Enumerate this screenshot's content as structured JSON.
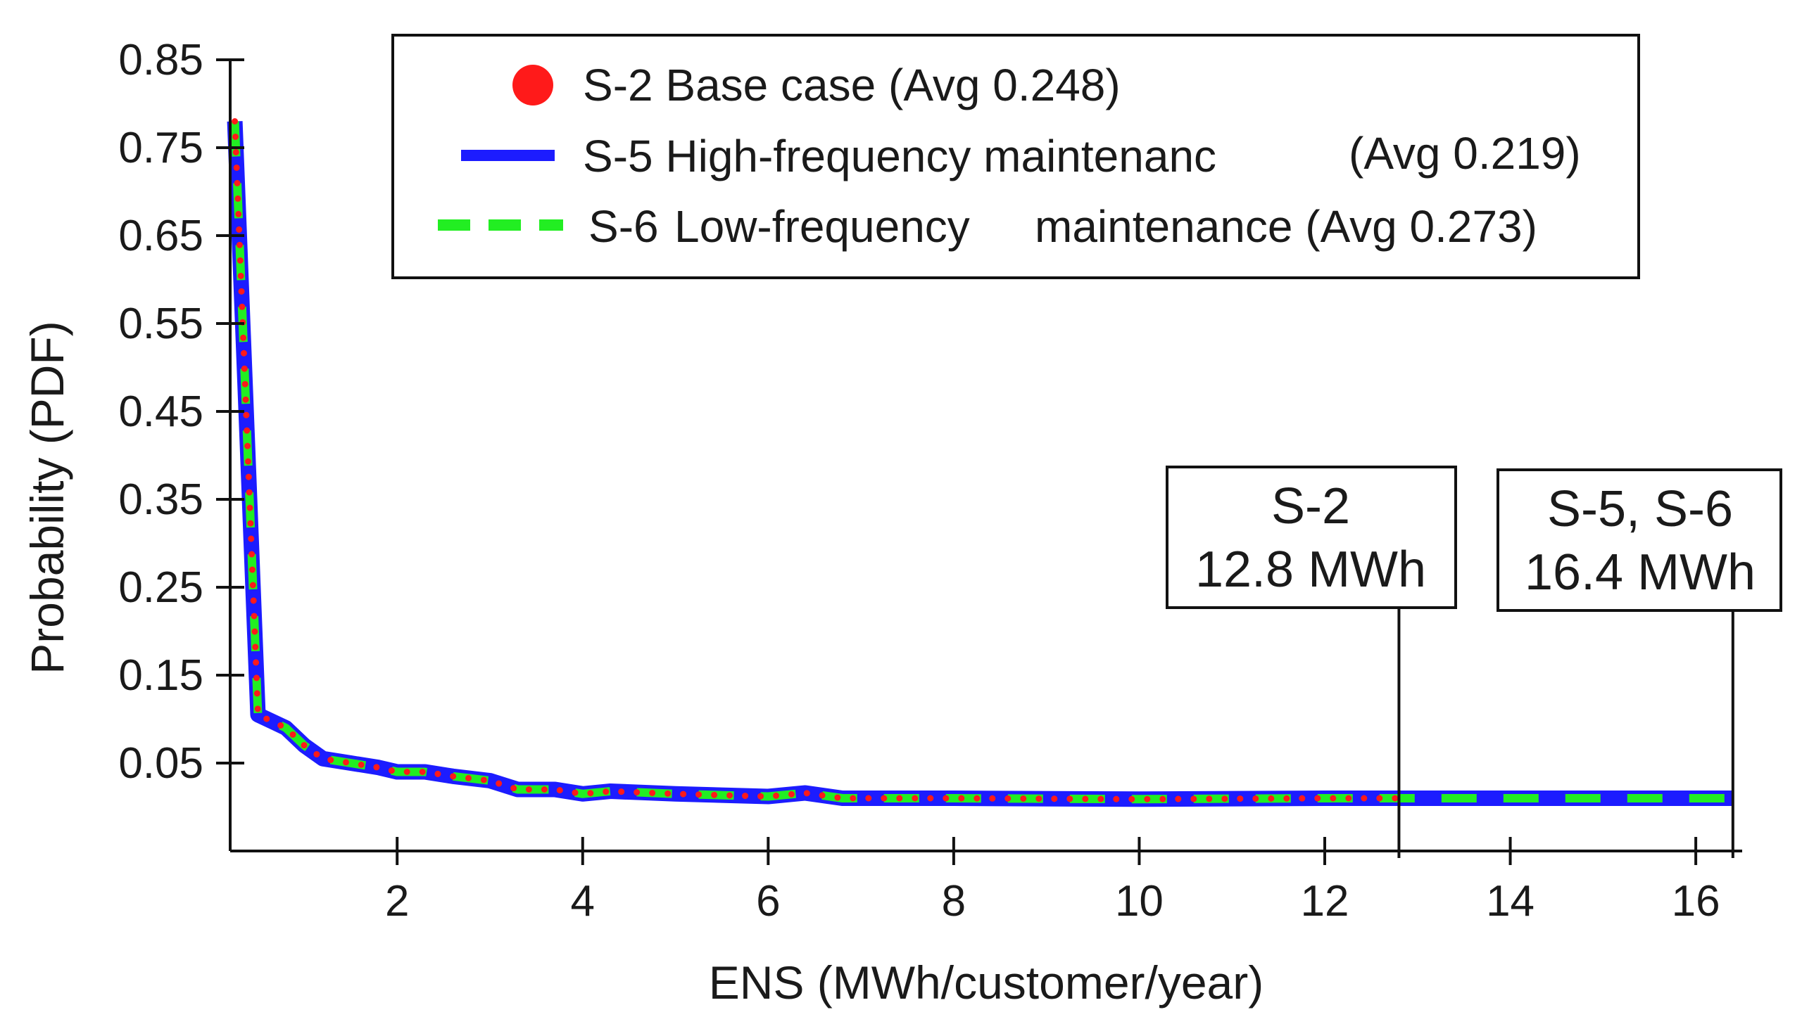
{
  "chart_data": {
    "type": "line",
    "title": "",
    "xlabel": "ENS (MWh/customer/year)",
    "ylabel": "Probability (PDF)",
    "xlim": [
      0.2,
      16.5
    ],
    "ylim": [
      -0.05,
      0.85
    ],
    "x_ticks": [
      2,
      4,
      6,
      8,
      10,
      12,
      14,
      16
    ],
    "x_tick_labels": [
      "2",
      "4",
      "6",
      "8",
      "10",
      "12",
      "14",
      "16"
    ],
    "y_ticks": [
      0.85,
      0.75,
      0.65,
      0.55,
      0.45,
      0.35,
      0.25,
      0.15,
      0.05
    ],
    "y_tick_labels": [
      "0.85",
      "0.75",
      "0.65",
      "0.55",
      "0.45",
      "0.35",
      "0.25",
      "0.15",
      "0.05"
    ],
    "legend_position": "top-center",
    "series": [
      {
        "name": "S-2 Base case (Avg 0.248)",
        "legend_parts": [
          "S-2 Base case (Avg 0.248)"
        ],
        "style": "dotted",
        "marker": "circle",
        "color": "#ff1a1a",
        "x": [
          0.25,
          0.5,
          0.8,
          1.0,
          1.2,
          1.5,
          1.8,
          2.0,
          2.3,
          2.6,
          3.0,
          3.3,
          3.7,
          4.0,
          4.3,
          5.0,
          6.0,
          6.4,
          6.8,
          8.0,
          10.0,
          12.0,
          12.8
        ],
        "y": [
          0.78,
          0.105,
          0.09,
          0.07,
          0.055,
          0.05,
          0.045,
          0.04,
          0.04,
          0.035,
          0.03,
          0.02,
          0.02,
          0.015,
          0.018,
          0.015,
          0.012,
          0.016,
          0.01,
          0.01,
          0.009,
          0.01,
          0.01
        ]
      },
      {
        "name": "S-5 High-frequency maintenanc (Avg 0.219)",
        "legend_parts": [
          "S-5 High-frequency maintenanc",
          "(Avg 0.219)"
        ],
        "style": "solid",
        "color": "#1c1cff",
        "x": [
          0.25,
          0.5,
          0.8,
          1.0,
          1.2,
          1.5,
          1.8,
          2.0,
          2.3,
          2.6,
          3.0,
          3.3,
          3.7,
          4.0,
          4.3,
          5.0,
          6.0,
          6.4,
          6.8,
          8.0,
          10.0,
          12.0,
          12.8,
          14.0,
          16.4
        ],
        "y": [
          0.78,
          0.105,
          0.09,
          0.07,
          0.055,
          0.05,
          0.045,
          0.04,
          0.04,
          0.035,
          0.03,
          0.02,
          0.02,
          0.015,
          0.018,
          0.015,
          0.012,
          0.016,
          0.01,
          0.01,
          0.009,
          0.01,
          0.01,
          0.01,
          0.01
        ]
      },
      {
        "name": "S-6 Low-frequency maintenance (Avg 0.273)",
        "legend_parts": [
          "S-6",
          "Low-frequency",
          "maintenance (Avg 0.273)"
        ],
        "style": "dashed",
        "color": "#22ee22",
        "x": [
          0.25,
          0.5,
          0.8,
          1.0,
          1.2,
          1.5,
          1.8,
          2.0,
          2.3,
          2.6,
          3.0,
          3.3,
          3.7,
          4.0,
          4.3,
          5.0,
          6.0,
          6.4,
          6.8,
          8.0,
          10.0,
          12.0,
          12.8,
          14.0,
          16.4
        ],
        "y": [
          0.78,
          0.105,
          0.09,
          0.07,
          0.055,
          0.05,
          0.045,
          0.04,
          0.04,
          0.035,
          0.03,
          0.02,
          0.02,
          0.015,
          0.018,
          0.015,
          0.012,
          0.016,
          0.01,
          0.01,
          0.009,
          0.01,
          0.01,
          0.01,
          0.01
        ]
      }
    ],
    "annotations": [
      {
        "lines": [
          "S-2",
          "12.8 MWh"
        ],
        "x": 12.8
      },
      {
        "lines": [
          "S-5, S-6",
          "16.4 MWh"
        ],
        "x": 16.4
      }
    ]
  }
}
